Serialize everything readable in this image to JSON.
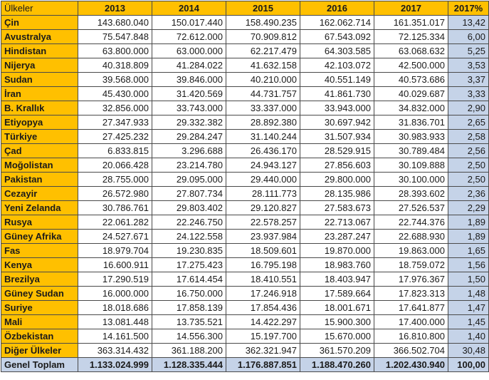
{
  "table": {
    "headers": [
      "Ülkeler",
      "2013",
      "2014",
      "2015",
      "2016",
      "2017",
      "2017%"
    ],
    "rows": [
      [
        "Çin",
        "143.680.040",
        "150.017.440",
        "158.490.235",
        "162.062.714",
        "161.351.017",
        "13,42"
      ],
      [
        "Avustralya",
        "75.547.848",
        "72.612.000",
        "70.909.812",
        "67.543.092",
        "72.125.334",
        "6,00"
      ],
      [
        "Hindistan",
        "63.800.000",
        "63.000.000",
        "62.217.479",
        "64.303.585",
        "63.068.632",
        "5,25"
      ],
      [
        "Nijerya",
        "40.318.809",
        "41.284.022",
        "41.632.158",
        "42.103.072",
        "42.500.000",
        "3,53"
      ],
      [
        "Sudan",
        "39.568.000",
        "39.846.000",
        "40.210.000",
        "40.551.149",
        "40.573.686",
        "3,37"
      ],
      [
        "İran",
        "45.430.000",
        "31.420.569",
        "44.731.757",
        "41.861.730",
        "40.029.687",
        "3,33"
      ],
      [
        "B. Krallık",
        "32.856.000",
        "33.743.000",
        "33.337.000",
        "33.943.000",
        "34.832.000",
        "2,90"
      ],
      [
        "Etiyopya",
        "27.347.933",
        "29.332.382",
        "28.892.380",
        "30.697.942",
        "31.836.701",
        "2,65"
      ],
      [
        "Türkiye",
        "27.425.232",
        "29.284.247",
        "31.140.244",
        "31.507.934",
        "30.983.933",
        "2,58"
      ],
      [
        "Çad",
        "6.833.815",
        "3.296.688",
        "26.436.170",
        "28.529.915",
        "30.789.484",
        "2,56"
      ],
      [
        "Moğolistan",
        "20.066.428",
        "23.214.780",
        "24.943.127",
        "27.856.603",
        "30.109.888",
        "2,50"
      ],
      [
        "Pakistan",
        "28.755.000",
        "29.095.000",
        "29.440.000",
        "29.800.000",
        "30.100.000",
        "2,50"
      ],
      [
        "Cezayir",
        "26.572.980",
        "27.807.734",
        "28.111.773",
        "28.135.986",
        "28.393.602",
        "2,36"
      ],
      [
        "Yeni Zelanda",
        "30.786.761",
        "29.803.402",
        "29.120.827",
        "27.583.673",
        "27.526.537",
        "2,29"
      ],
      [
        "Rusya",
        "22.061.282",
        "22.246.750",
        "22.578.257",
        "22.713.067",
        "22.744.376",
        "1,89"
      ],
      [
        "Güney Afrika",
        "24.527.671",
        "24.122.558",
        "23.937.984",
        "23.287.247",
        "22.688.930",
        "1,89"
      ],
      [
        "Fas",
        "18.979.704",
        "19.230.835",
        "18.509.601",
        "19.870.000",
        "19.863.000",
        "1,65"
      ],
      [
        "Kenya",
        "16.600.911",
        "17.275.423",
        "16.795.198",
        "18.983.760",
        "18.759.072",
        "1,56"
      ],
      [
        "Brezilya",
        "17.290.519",
        "17.614.454",
        "18.410.551",
        "18.403.947",
        "17.976.367",
        "1,50"
      ],
      [
        "Güney Sudan",
        "16.000.000",
        "16.750.000",
        "17.246.918",
        "17.589.664",
        "17.823.313",
        "1,48"
      ],
      [
        "Suriye",
        "18.018.686",
        "17.858.139",
        "17.854.436",
        "18.001.671",
        "17.641.877",
        "1,47"
      ],
      [
        "Mali",
        "13.081.448",
        "13.735.521",
        "14.422.297",
        "15.900.300",
        "17.400.000",
        "1,45"
      ],
      [
        "Özbekistan",
        "14.161.500",
        "14.556.300",
        "15.197.700",
        "15.670.000",
        "16.810.800",
        "1,40"
      ],
      [
        "Diğer Ülkeler",
        "363.314.432",
        "361.188.200",
        "362.321.947",
        "361.570.209",
        "366.502.704",
        "30,48"
      ]
    ],
    "total": [
      "Genel Toplam",
      "1.133.024.999",
      "1.128.335.444",
      "1.176.887.851",
      "1.188.470.260",
      "1.202.430.940",
      "100,00"
    ]
  },
  "colors": {
    "header_bg": "#ffc000",
    "country_bg": "#ffc000",
    "percent_bg": "#c5d3e8",
    "total_bg": "#c5d3e8",
    "border": "#4a4a4a"
  }
}
